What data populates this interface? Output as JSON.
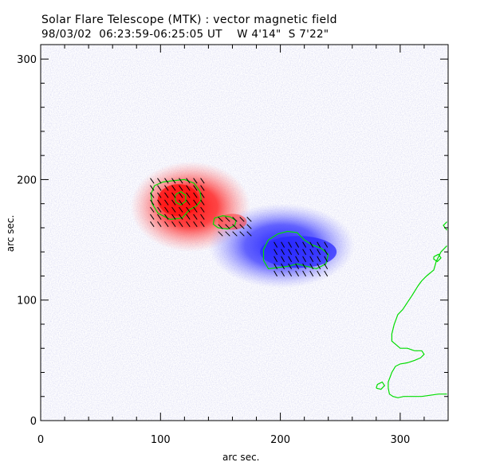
{
  "title": "Solar Flare Telescope (MTK) : vector magnetic field",
  "subtitle": "98/03/02  06:23:59-06:25:05 UT    W 4'14\"  S 7'22\"",
  "chart_data": {
    "type": "heatmap",
    "xlabel": "arc sec.",
    "ylabel": "arc sec.",
    "xlim": [
      0,
      340
    ],
    "ylim": [
      0,
      312
    ],
    "xticks": [
      0,
      100,
      200,
      300
    ],
    "yticks": [
      0,
      100,
      200,
      300
    ],
    "colors": {
      "positive": "#ff2020",
      "negative": "#3030ff",
      "contour": "#00dd00",
      "vectors": "#000000"
    },
    "positive_region": {
      "center": [
        115,
        183
      ],
      "extent_x": [
        75,
        175
      ],
      "extent_y": [
        140,
        215
      ]
    },
    "negative_region": {
      "center": [
        215,
        140
      ],
      "extent_x": [
        140,
        262
      ],
      "extent_y": [
        110,
        180
      ]
    },
    "contours": [
      {
        "name": "positive-core",
        "points": [
          [
            95,
            195
          ],
          [
            102,
            198
          ],
          [
            110,
            199
          ],
          [
            120,
            200
          ],
          [
            128,
            197
          ],
          [
            133,
            190
          ],
          [
            134,
            183
          ],
          [
            130,
            178
          ],
          [
            124,
            175
          ],
          [
            118,
            168
          ],
          [
            108,
            167
          ],
          [
            98,
            172
          ],
          [
            93,
            180
          ],
          [
            92,
            188
          ],
          [
            95,
            195
          ]
        ]
      },
      {
        "name": "positive-inner",
        "points": [
          [
            113,
            188
          ],
          [
            117,
            190
          ],
          [
            121,
            187
          ],
          [
            121,
            182
          ],
          [
            117,
            179
          ],
          [
            113,
            181
          ],
          [
            112,
            185
          ],
          [
            113,
            188
          ]
        ]
      },
      {
        "name": "positive-east",
        "points": [
          [
            145,
            168
          ],
          [
            152,
            170
          ],
          [
            158,
            169
          ],
          [
            163,
            166
          ],
          [
            162,
            162
          ],
          [
            156,
            159
          ],
          [
            148,
            160
          ],
          [
            144,
            163
          ],
          [
            145,
            168
          ]
        ]
      },
      {
        "name": "negative-core",
        "points": [
          [
            190,
            150
          ],
          [
            198,
            155
          ],
          [
            206,
            157
          ],
          [
            214,
            156
          ],
          [
            220,
            150
          ],
          [
            226,
            146
          ],
          [
            234,
            143
          ],
          [
            240,
            138
          ],
          [
            238,
            130
          ],
          [
            230,
            126
          ],
          [
            222,
            128
          ],
          [
            214,
            130
          ],
          [
            206,
            128
          ],
          [
            198,
            127
          ],
          [
            190,
            126
          ],
          [
            186,
            133
          ],
          [
            186,
            142
          ],
          [
            190,
            150
          ]
        ]
      },
      {
        "name": "plage-east",
        "points": [
          [
            339,
            165
          ],
          [
            336,
            162
          ],
          [
            339,
            158
          ]
        ]
      },
      {
        "name": "plage-right",
        "points": [
          [
            339,
            145
          ],
          [
            334,
            140
          ],
          [
            330,
            132
          ],
          [
            328,
            125
          ],
          [
            322,
            120
          ],
          [
            318,
            116
          ],
          [
            315,
            112
          ],
          [
            310,
            104
          ],
          [
            306,
            98
          ],
          [
            302,
            92
          ],
          [
            298,
            88
          ],
          [
            295,
            80
          ],
          [
            293,
            72
          ],
          [
            293,
            66
          ],
          [
            300,
            60
          ],
          [
            306,
            60
          ],
          [
            312,
            58
          ],
          [
            318,
            58
          ],
          [
            320,
            55
          ],
          [
            317,
            52
          ],
          [
            312,
            50
          ],
          [
            306,
            48
          ],
          [
            300,
            47
          ],
          [
            296,
            45
          ],
          [
            293,
            40
          ],
          [
            290,
            32
          ],
          [
            290,
            27
          ],
          [
            291,
            22
          ],
          [
            294,
            20
          ],
          [
            298,
            19
          ],
          [
            303,
            20
          ],
          [
            310,
            20
          ],
          [
            318,
            20
          ],
          [
            325,
            21
          ],
          [
            332,
            22
          ],
          [
            339,
            22
          ]
        ]
      },
      {
        "name": "plage-small",
        "points": [
          [
            328,
            136
          ],
          [
            332,
            138
          ],
          [
            334,
            135
          ],
          [
            331,
            132
          ],
          [
            328,
            134
          ],
          [
            328,
            136
          ]
        ]
      },
      {
        "name": "plage-low",
        "points": [
          [
            280,
            27
          ],
          [
            284,
            26
          ],
          [
            287,
            29
          ],
          [
            285,
            32
          ],
          [
            281,
            30
          ],
          [
            280,
            27
          ]
        ]
      }
    ],
    "vector_field": {
      "positive_region": {
        "x_range": [
          93,
          140
        ],
        "y_range": [
          163,
          200
        ],
        "step": 6,
        "angle_deg": -55,
        "length": 8
      },
      "bridge": {
        "x_range": [
          150,
          178
        ],
        "y_range": [
          155,
          170
        ],
        "step": 6,
        "angle_deg": -45,
        "length": 8
      },
      "negative_region": {
        "x_range": [
          196,
          242
        ],
        "y_range": [
          122,
          148
        ],
        "step": 6,
        "angle_deg": -60,
        "length": 8
      }
    }
  }
}
